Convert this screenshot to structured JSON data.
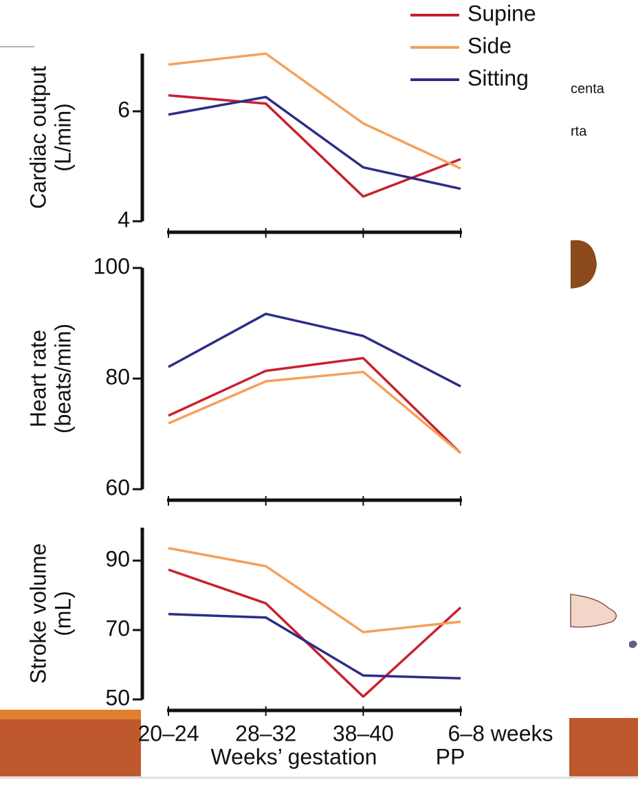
{
  "chart_data": [
    {
      "type": "line",
      "ylabel": [
        "Cardiac output",
        "(L/min)"
      ],
      "ylim": [
        4,
        7.05
      ],
      "yticks": [
        4,
        6
      ],
      "legend": "top-right",
      "series": [
        {
          "name": "Supine",
          "color": "#c8202f",
          "values": [
            6.29,
            6.14,
            4.45,
            5.13
          ]
        },
        {
          "name": "Side",
          "color": "#f5a05a",
          "values": [
            6.85,
            7.05,
            5.78,
            4.96
          ]
        },
        {
          "name": "Sitting",
          "color": "#2b2d85",
          "values": [
            5.94,
            6.26,
            4.98,
            4.59
          ]
        }
      ]
    },
    {
      "type": "line",
      "ylabel": [
        "Heart rate",
        "(beats/min)"
      ],
      "ylim": [
        60,
        100
      ],
      "yticks": [
        60,
        80,
        100
      ],
      "series": [
        {
          "color": "#c8202f",
          "values": [
            73.3,
            81.4,
            83.7,
            66.5
          ]
        },
        {
          "color": "#f5a05a",
          "values": [
            71.9,
            79.5,
            81.2,
            66.5
          ]
        },
        {
          "color": "#2b2d85",
          "values": [
            82.1,
            91.7,
            87.7,
            78.6
          ]
        }
      ]
    },
    {
      "type": "line",
      "ylabel": [
        "Stroke volume",
        "(mL)"
      ],
      "ylim": [
        50,
        99.5
      ],
      "yticks": [
        50,
        70,
        90
      ],
      "xlabel": "Weeks’ gestation",
      "categories": [
        "20–24",
        "28–32",
        "38–40",
        [
          "6–8 weeks",
          "PP"
        ]
      ],
      "series": [
        {
          "color": "#c8202f",
          "values": [
            87.4,
            77.7,
            50.8,
            76.5
          ]
        },
        {
          "color": "#f5a05a",
          "values": [
            93.6,
            88.4,
            69.4,
            72.4
          ]
        },
        {
          "color": "#2b2d85",
          "values": [
            74.6,
            73.6,
            56.9,
            56.1
          ]
        }
      ]
    }
  ],
  "background_text": [
    "centa",
    "rta"
  ]
}
